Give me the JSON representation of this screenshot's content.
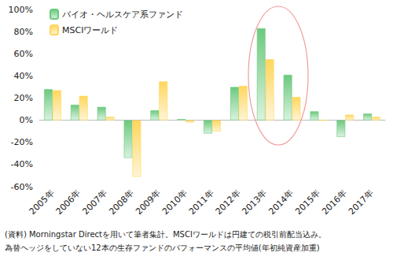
{
  "chart_data": {
    "type": "bar",
    "categories": [
      "2005年",
      "2006年",
      "2007年",
      "2008年",
      "2009年",
      "2010年",
      "2011年",
      "2012年",
      "2013年",
      "2014年",
      "2015年",
      "2016年",
      "2017年"
    ],
    "series": [
      {
        "name": "バイオ・ヘルスケア系ファンド",
        "color": "#6cc97f",
        "values": [
          28,
          14,
          12,
          -34,
          9,
          1,
          -12,
          30,
          83,
          41,
          8,
          -15,
          6
        ]
      },
      {
        "name": "MSCIワールド",
        "color": "#ffd65c",
        "values": [
          27,
          22,
          3,
          -51,
          35,
          -2,
          -10,
          31,
          55,
          21,
          0,
          5,
          3
        ]
      }
    ],
    "ylim": [
      -60,
      100
    ],
    "yticks": [
      {
        "value": -60,
        "label": "-60%"
      },
      {
        "value": -40,
        "label": "-40%"
      },
      {
        "value": -20,
        "label": "-20%"
      },
      {
        "value": 0,
        "label": "0%"
      },
      {
        "value": 20,
        "label": "20%"
      },
      {
        "value": 40,
        "label": "40%"
      },
      {
        "value": 60,
        "label": "60%"
      },
      {
        "value": 80,
        "label": "80%"
      },
      {
        "value": 100,
        "label": "100%"
      }
    ],
    "grid": false,
    "legend": "upper left",
    "annotations": [
      "(資料) Morningstar Directを用いて筆者集計。MSCIワールドは円建ての税引前配当込み。",
      "為替ヘッジをしていない12本の生存ファンドのパフォーマンスの平均値(年初純資産加重)"
    ]
  }
}
